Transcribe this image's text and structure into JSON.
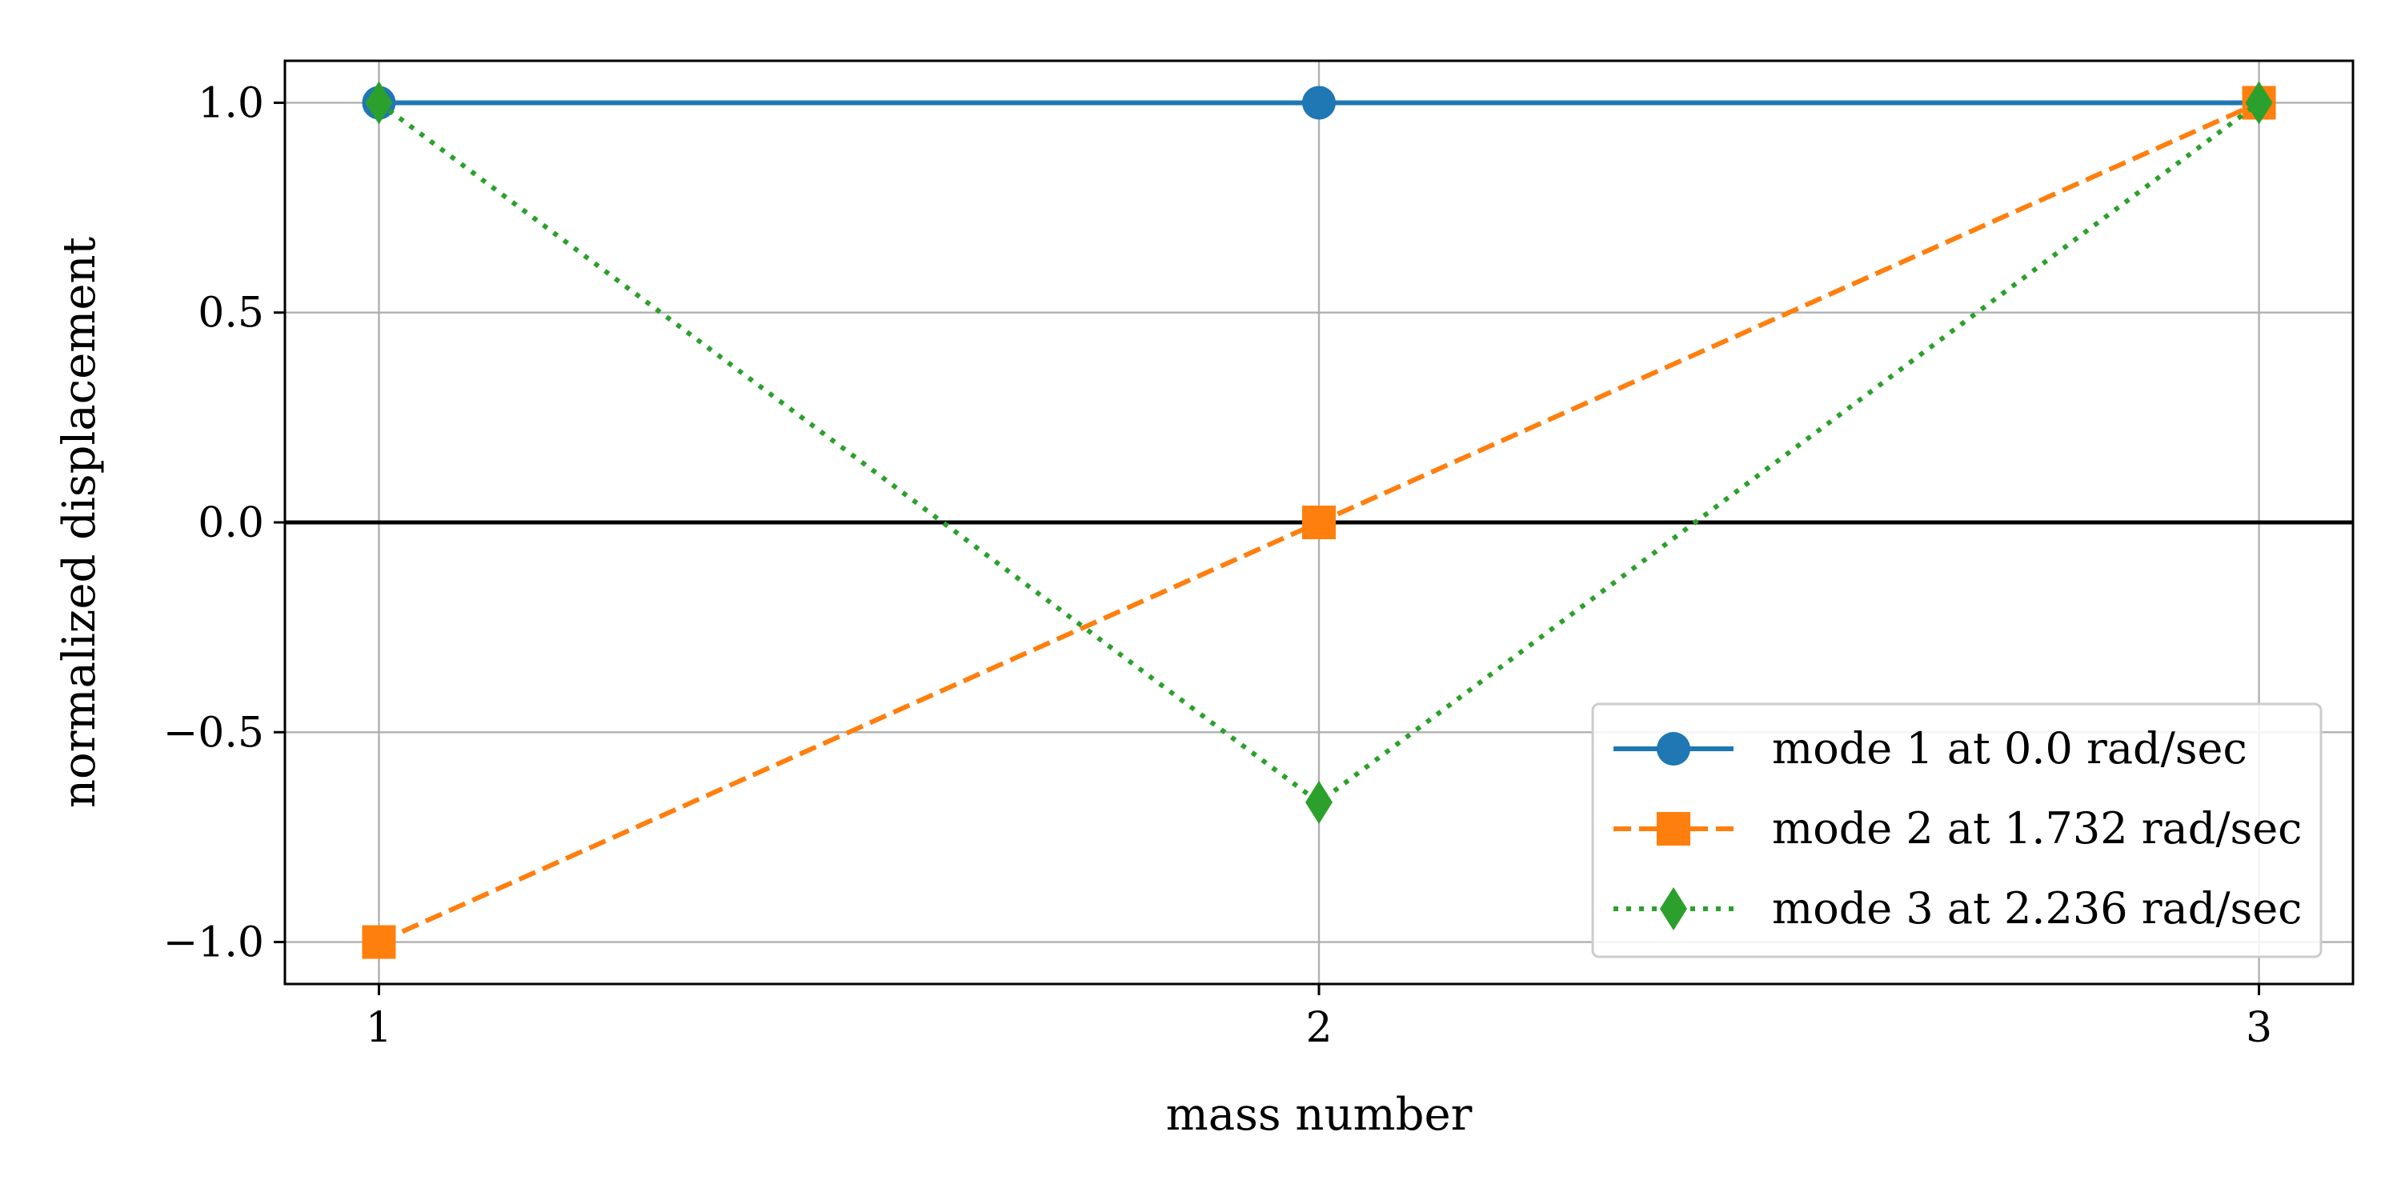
{
  "chart_data": {
    "type": "line",
    "xlabel": "mass number",
    "ylabel": "normalized displacement",
    "xlim": [
      0.9,
      3.1
    ],
    "ylim": [
      -1.1,
      1.1
    ],
    "x_ticks": [
      1,
      2,
      3
    ],
    "x_tick_labels": [
      "1",
      "2",
      "3"
    ],
    "y_ticks": [
      -1.0,
      -0.5,
      0.0,
      0.5,
      1.0
    ],
    "y_tick_labels": [
      "−1.0",
      "−0.5",
      "0.0",
      "0.5",
      "1.0"
    ],
    "grid": true,
    "zero_line": true,
    "legend_position": "lower-right",
    "series": [
      {
        "name": "mode 1 at 0.0 rad/sec",
        "x": [
          1,
          2,
          3
        ],
        "y": [
          1.0,
          1.0,
          1.0
        ],
        "color": "#1f77b4",
        "line_style": "solid",
        "marker": "circle"
      },
      {
        "name": "mode 2 at 1.732 rad/sec",
        "x": [
          1,
          2,
          3
        ],
        "y": [
          -1.0,
          0.0,
          1.0
        ],
        "color": "#ff7f0e",
        "line_style": "dashed",
        "marker": "square"
      },
      {
        "name": "mode 3 at 2.236 rad/sec",
        "x": [
          1,
          2,
          3
        ],
        "y": [
          1.0,
          -0.667,
          1.0
        ],
        "color": "#2ca02c",
        "line_style": "dotted",
        "marker": "diamond"
      }
    ]
  }
}
